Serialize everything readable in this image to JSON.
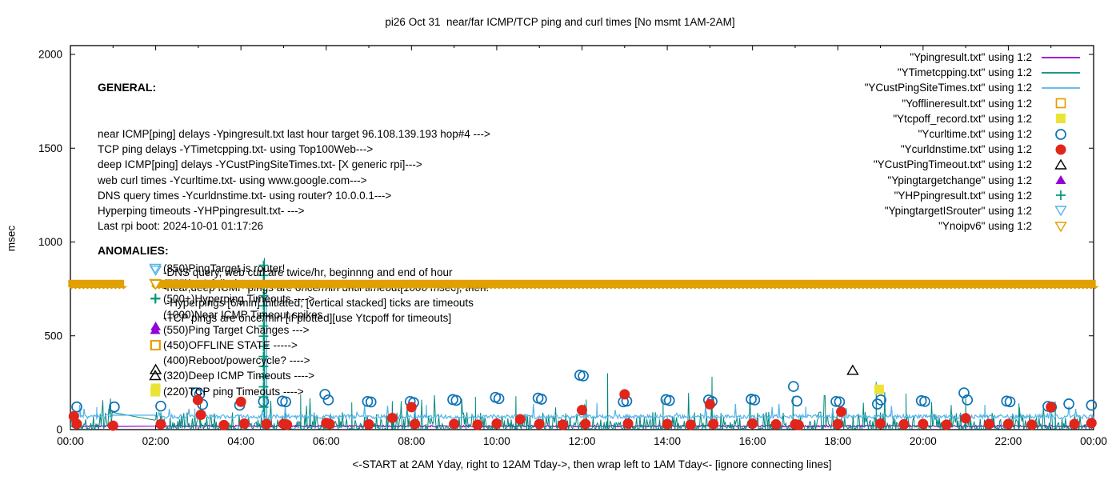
{
  "figure": {
    "title": "pi26 Oct 31  near/far ICMP/TCP ping and curl times [No msmt 1AM-2AM]"
  },
  "y_axis": {
    "label": "msec",
    "ticks": [
      0,
      500,
      1000,
      1500,
      2000
    ]
  },
  "x_axis": {
    "tick_labels": [
      "00:00",
      "02:00",
      "04:00",
      "06:00",
      "08:00",
      "10:00",
      "12:00",
      "14:00",
      "16:00",
      "18:00",
      "20:00",
      "22:00",
      "00:00"
    ],
    "caption": "<-START at 2AM Yday, right to 12AM Tday->, then wrap left to 1AM Tday<- [ignore connecting lines]"
  },
  "legend": [
    {
      "label": "\"Ypingresult.txt\" using 1:2",
      "key": "line",
      "color": "#9400d3"
    },
    {
      "label": "\"YTimetcpping.txt\" using 1:2",
      "key": "line",
      "color": "#00897b"
    },
    {
      "label": "\"YCustPingSiteTimes.txt\" using 1:2",
      "key": "line",
      "color": "#56b4e9"
    },
    {
      "label": "\"Yofflineresult.txt\" using 1:2",
      "key": "square-open",
      "color": "#e69f00"
    },
    {
      "label": "\"Ytcpoff_record.txt\" using 1:2",
      "key": "square-filled",
      "color": "#ebe338"
    },
    {
      "label": "\"Ycurltime.txt\" using 1:2",
      "key": "circle-open",
      "color": "#0e72b5"
    },
    {
      "label": "\"Ycurldnstime.txt\" using 1:2",
      "key": "circle-filled",
      "color": "#e1251b"
    },
    {
      "label": "\"YCustPingTimeout.txt\" using 1:2",
      "key": "triangle-open",
      "color": "#000000"
    },
    {
      "label": "\"Ypingtargetchange\" using 1:2",
      "key": "triangle-filled",
      "color": "#9400d3"
    },
    {
      "label": "\"YHPpingresult.txt\" using 1:2",
      "key": "plus",
      "color": "#009877"
    },
    {
      "label": "\"YpingtargetISrouter\" using 1:2",
      "key": "triangle-down-open",
      "color": "#56b4e9"
    },
    {
      "label": "\"Ynoipv6\" using 1:2",
      "key": "triangle-down-open",
      "color": "#e69f00"
    }
  ],
  "general": {
    "header": "GENERAL:",
    "lines": [
      "near ICMP[ping] delays -Ypingresult.txt last hour target 96.108.139.193 hop#4 --->",
      "TCP ping delays -YTimetcpping.txt- using Top100Web--->",
      "deep ICMP[ping] delays -YCustPingSiteTimes.txt- [X generic rpi]--->",
      "web curl times -Ycurltime.txt- using www.google.com--->",
      "DNS query times -Ycurldnstime.txt- using router? 10.0.0.1--->",
      "Hyperping timeouts -YHPpingresult.txt- --->",
      "Last rpi boot: 2024-10-01 01:17:26"
    ],
    "notes": [
      "-DNS query, web curl are twice/hr, beginnng and end of hour",
      "-near,deep ICMP pings are once/min until timeout[1000 msec], then:",
      " -Hyperpings [6/min] initiated; [vertical stacked] ticks are timeouts",
      "-TCP pings are once/min [if plotted][use Ytcpoff for timeouts]"
    ]
  },
  "anomalies": {
    "header": "ANOMALIES:",
    "items": [
      {
        "marker": "triangle-down-open",
        "color": "#56b4e9",
        "text": "(850)PingTarget is router!"
      },
      {
        "marker": "triangle-down-open",
        "color": "#e69f00",
        "text": "(775)ipv6 failed --->"
      },
      {
        "marker": "plus",
        "color": "#009877",
        "text": "(500+)Hyperping Timeouts ---->"
      },
      {
        "marker": "none",
        "color": "#000000",
        "text": "(1000)Near ICMP Timeout spikes"
      },
      {
        "marker": "triangle-filled",
        "color": "#9400d3",
        "text": "(550)Ping Target Changes --->"
      },
      {
        "marker": "square-open",
        "color": "#e69f00",
        "text": "(450)OFFLINE STATE ----->"
      },
      {
        "marker": "none",
        "color": "#000000",
        "text": "(400)Reboot/powercycle? ---->"
      },
      {
        "marker": "triangle-open",
        "color": "#000000",
        "text": "(320)Deep ICMP Timeouts ---->"
      },
      {
        "marker": "square-filled",
        "color": "#ebe338",
        "text": "(220)TCP ping Timeouts ---->"
      }
    ]
  },
  "chart_data": {
    "type": "line+scatter time series",
    "title": "pi26 Oct 31  near/far ICMP/TCP ping and curl times [No msmt 1AM-2AM]",
    "xlabel": "<-START at 2AM Yday, right to 12AM Tday->, then wrap left to 1AM Tday<- [ignore connecting lines]",
    "ylabel": "msec",
    "x_hours_range": [
      0,
      24
    ],
    "ylim": [
      0,
      2000
    ],
    "y_ticks": [
      0,
      500,
      1000,
      1500,
      2000
    ],
    "grid": false,
    "legend_position": "top-right inside",
    "no_measurement_gap_hours": [
      1.0,
      2.0
    ],
    "series": [
      {
        "name": "Ypingresult.txt",
        "role": "near-icmp-ping",
        "style": "line",
        "color": "#9400d3",
        "band_msec": [
          14,
          23
        ],
        "skew": 1,
        "seed": 11,
        "spikes": []
      },
      {
        "name": "YTimetcpping.txt",
        "role": "tcp-ping",
        "style": "line",
        "color": "#00897b",
        "band_msec": [
          2,
          95
        ],
        "skew": 3,
        "seed": 7,
        "tall": [
          0.02,
          110,
          200
        ],
        "spikes": [
          [
            3.05,
            165
          ],
          [
            4.55,
            915
          ],
          [
            5.4,
            188
          ],
          [
            6.6,
            145
          ],
          [
            7.55,
            152
          ],
          [
            9.5,
            175
          ],
          [
            10.45,
            178
          ],
          [
            12.1,
            160
          ],
          [
            12.6,
            300
          ],
          [
            13.9,
            162
          ],
          [
            15.05,
            282
          ],
          [
            16.95,
            178
          ],
          [
            18.9,
            255
          ],
          [
            19.6,
            192
          ],
          [
            21.0,
            165
          ],
          [
            22.25,
            140
          ],
          [
            23.1,
            150
          ]
        ]
      },
      {
        "name": "YCustPingSiteTimes.txt",
        "role": "deep-icmp-ping",
        "style": "line",
        "color": "#56b4e9",
        "band_msec": [
          58,
          80
        ],
        "skew": 1,
        "seed": 3,
        "tall": [
          0.015,
          85,
          140
        ],
        "spikes": [
          [
            0.62,
            120
          ],
          [
            2.92,
            112
          ],
          [
            4.6,
            770
          ],
          [
            8.35,
            132
          ],
          [
            12.35,
            142
          ],
          [
            17.25,
            122
          ],
          [
            21.45,
            132
          ]
        ]
      },
      {
        "name": "Yofflineresult.txt",
        "role": "offline-state",
        "style": "scatter",
        "marker": "square-open",
        "color": "#e69f00",
        "points": [
          [
            2.0,
            450
          ]
        ]
      },
      {
        "name": "Ytcpoff_record.txt",
        "role": "tcp-ping-timeout",
        "style": "scatter",
        "marker": "square-filled",
        "color": "#ebe338",
        "points": [
          [
            2.0,
            220
          ],
          [
            18.97,
            214
          ]
        ]
      },
      {
        "name": "Ycurltime.txt",
        "role": "web-curl-time",
        "style": "scatter",
        "marker": "circle-open",
        "color": "#0e72b5",
        "points": [
          [
            0.15,
            121
          ],
          [
            1.03,
            121
          ],
          [
            2.12,
            125
          ],
          [
            2.95,
            196
          ],
          [
            3.03,
            188
          ],
          [
            3.1,
            134
          ],
          [
            3.97,
            130
          ],
          [
            4.53,
            150
          ],
          [
            4.97,
            152
          ],
          [
            5.05,
            148
          ],
          [
            5.97,
            188
          ],
          [
            6.05,
            158
          ],
          [
            6.97,
            150
          ],
          [
            7.05,
            147
          ],
          [
            7.97,
            150
          ],
          [
            8.05,
            144
          ],
          [
            8.97,
            160
          ],
          [
            9.05,
            156
          ],
          [
            9.97,
            172
          ],
          [
            10.05,
            165
          ],
          [
            10.97,
            168
          ],
          [
            11.05,
            162
          ],
          [
            11.95,
            290
          ],
          [
            12.03,
            286
          ],
          [
            12.97,
            148
          ],
          [
            13.05,
            152
          ],
          [
            13.97,
            160
          ],
          [
            14.05,
            155
          ],
          [
            14.97,
            158
          ],
          [
            15.05,
            150
          ],
          [
            15.97,
            162
          ],
          [
            16.05,
            158
          ],
          [
            16.96,
            230
          ],
          [
            17.04,
            152
          ],
          [
            17.96,
            150
          ],
          [
            18.04,
            148
          ],
          [
            18.93,
            136
          ],
          [
            19.01,
            158
          ],
          [
            19.96,
            154
          ],
          [
            20.04,
            150
          ],
          [
            20.96,
            196
          ],
          [
            21.04,
            158
          ],
          [
            21.96,
            152
          ],
          [
            22.04,
            148
          ],
          [
            22.93,
            124
          ],
          [
            23.01,
            120
          ],
          [
            23.42,
            137
          ],
          [
            23.95,
            130
          ]
        ]
      },
      {
        "name": "Ycurldnstime.txt",
        "role": "dns-query-time",
        "style": "scatter",
        "marker": "circle-filled",
        "color": "#e1251b",
        "points": [
          [
            0.08,
            71
          ],
          [
            0.15,
            30
          ],
          [
            1.0,
            21
          ],
          [
            2.12,
            29
          ],
          [
            2.99,
            158
          ],
          [
            3.06,
            79
          ],
          [
            3.6,
            24
          ],
          [
            4.0,
            148
          ],
          [
            4.08,
            32
          ],
          [
            4.6,
            30
          ],
          [
            5.0,
            30
          ],
          [
            5.08,
            26
          ],
          [
            6.0,
            35
          ],
          [
            6.08,
            30
          ],
          [
            7.0,
            28
          ],
          [
            7.55,
            62
          ],
          [
            8.0,
            120
          ],
          [
            8.08,
            30
          ],
          [
            9.0,
            30
          ],
          [
            9.55,
            26
          ],
          [
            10.0,
            32
          ],
          [
            10.55,
            55
          ],
          [
            11.0,
            30
          ],
          [
            11.55,
            26
          ],
          [
            12.0,
            104
          ],
          [
            12.08,
            30
          ],
          [
            13.0,
            188
          ],
          [
            13.08,
            32
          ],
          [
            14.0,
            30
          ],
          [
            14.55,
            26
          ],
          [
            15.0,
            135
          ],
          [
            15.08,
            30
          ],
          [
            16.0,
            32
          ],
          [
            16.55,
            28
          ],
          [
            17.0,
            28
          ],
          [
            17.08,
            24
          ],
          [
            18.0,
            30
          ],
          [
            18.08,
            95
          ],
          [
            19.0,
            32
          ],
          [
            19.55,
            28
          ],
          [
            20.0,
            30
          ],
          [
            20.55,
            26
          ],
          [
            21.0,
            60
          ],
          [
            21.55,
            30
          ],
          [
            22.0,
            30
          ],
          [
            22.55,
            26
          ],
          [
            23.0,
            120
          ],
          [
            23.55,
            30
          ],
          [
            23.95,
            35
          ]
        ]
      },
      {
        "name": "YCustPingTimeout.txt",
        "role": "deep-icmp-timeout",
        "style": "scatter",
        "marker": "triangle-open",
        "color": "#000000",
        "points": [
          [
            2.0,
            320
          ],
          [
            18.35,
            316
          ]
        ]
      },
      {
        "name": "Ypingtargetchange",
        "role": "ping-target-change",
        "style": "scatter",
        "marker": "triangle-filled",
        "color": "#9400d3",
        "points": [
          [
            2.0,
            550
          ]
        ]
      },
      {
        "name": "YHPpingresult.txt",
        "role": "hyperping-timeout",
        "style": "scatter",
        "marker": "plus",
        "color": "#009877",
        "points": [
          [
            2.0,
            700
          ],
          [
            4.53,
            120
          ],
          [
            4.53,
            174
          ],
          [
            4.53,
            228
          ],
          [
            4.53,
            282
          ],
          [
            4.53,
            336
          ],
          [
            4.53,
            390
          ],
          [
            4.53,
            444
          ],
          [
            4.53,
            498
          ],
          [
            4.53,
            552
          ],
          [
            4.53,
            606
          ],
          [
            4.53,
            660
          ],
          [
            4.53,
            714
          ],
          [
            4.53,
            768
          ],
          [
            4.53,
            822
          ],
          [
            4.53,
            876
          ]
        ]
      },
      {
        "name": "YpingtargetISrouter",
        "role": "ping-target-is-router",
        "style": "scatter",
        "marker": "triangle-down-open",
        "color": "#56b4e9",
        "points": [
          [
            2.0,
            850
          ]
        ]
      },
      {
        "name": "Ynoipv6",
        "role": "no-ipv6-band",
        "style": "band",
        "marker": "triangle-down-open",
        "color": "#dfa000",
        "value_msec": 775,
        "segments_hours": [
          [
            -0.05,
            1.26
          ],
          [
            1.91,
            24.05
          ]
        ]
      }
    ]
  }
}
